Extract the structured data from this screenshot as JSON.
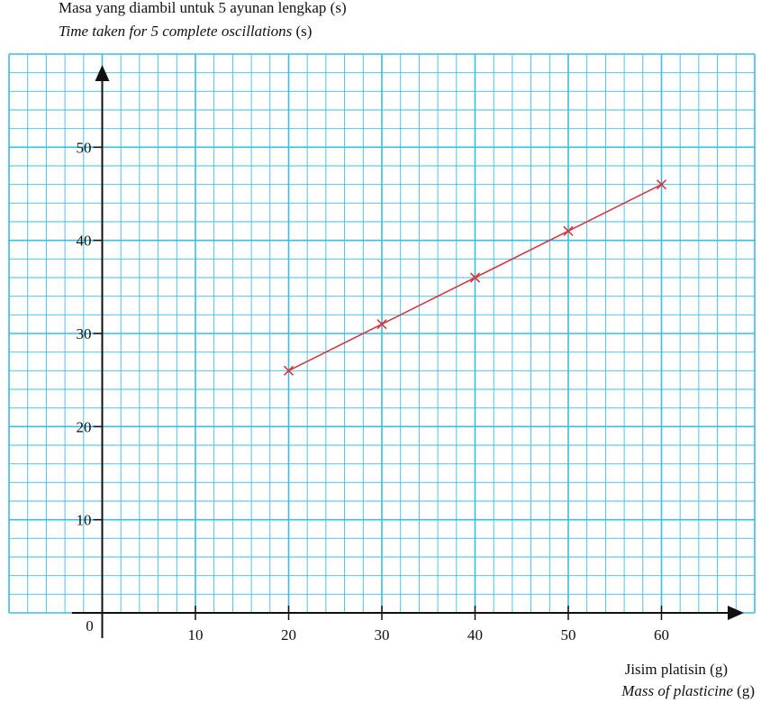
{
  "chart_data": {
    "type": "line",
    "y_label": "Masa yang diambil untuk 5 ayunan lengkap (s)",
    "y_label_en": "Time taken for 5 complete oscillations",
    "y_label_en_unit": "(s)",
    "x_label": "Jisim platisin (g)",
    "x_label_en": "Mass of plasticine",
    "x_label_en_unit": "(g)",
    "x": [
      20,
      30,
      40,
      50,
      60
    ],
    "series": [
      {
        "color": "#d9343f",
        "values": [
          26,
          31,
          36,
          41,
          46
        ]
      }
    ],
    "xlim": [
      -10,
      70
    ],
    "ylim": [
      0,
      60
    ],
    "xticks": [
      0,
      10,
      20,
      30,
      40,
      50,
      60
    ],
    "yticks": [
      10,
      20,
      30,
      40,
      50
    ],
    "grid": true
  }
}
